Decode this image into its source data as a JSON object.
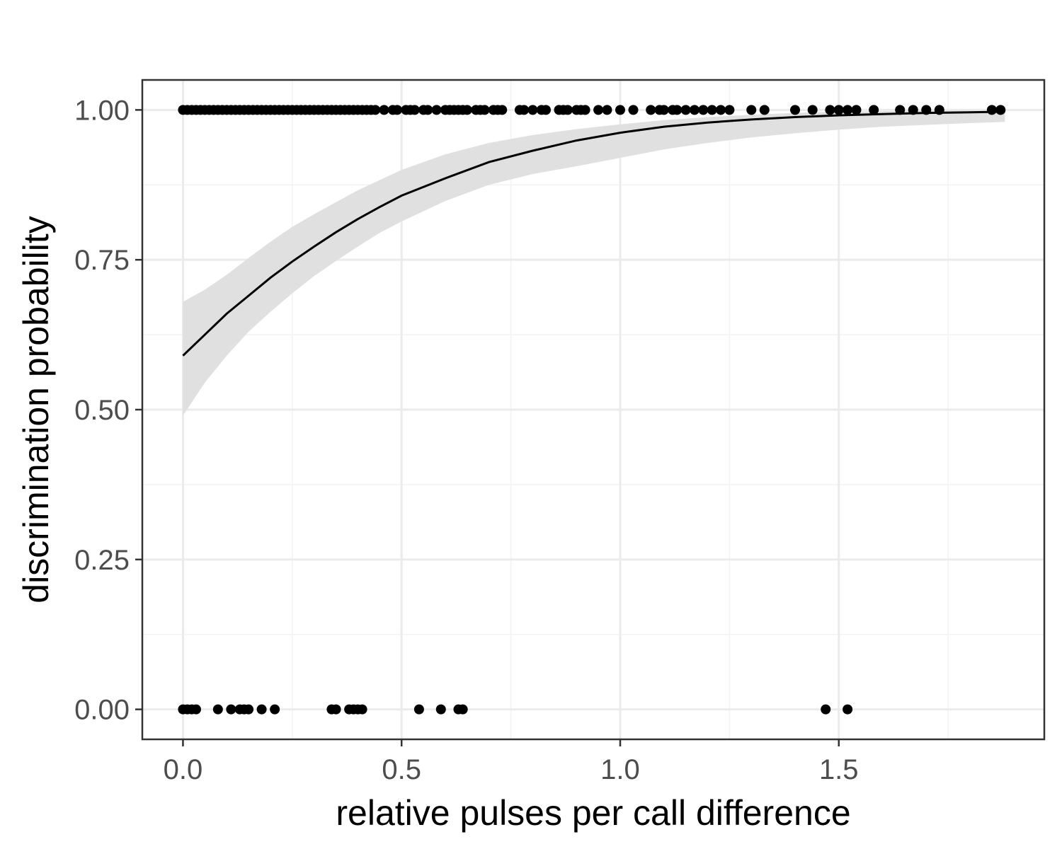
{
  "chart_data": {
    "type": "scatter",
    "title": "",
    "xlabel": "relative pulses per call difference",
    "ylabel": "discrimination probability",
    "xlim": [
      -0.093,
      1.97
    ],
    "ylim": [
      -0.05,
      1.05
    ],
    "x_ticks": [
      0.0,
      0.5,
      1.0,
      1.5
    ],
    "x_tick_labels": [
      "0.0",
      "0.5",
      "1.0",
      "1.5"
    ],
    "y_ticks": [
      0.0,
      0.25,
      0.5,
      0.75,
      1.0
    ],
    "y_tick_labels": [
      "0.00",
      "0.25",
      "0.50",
      "0.75",
      "1.00"
    ],
    "grid": true,
    "legend": "none",
    "colors": {
      "points": "#000000",
      "fit_line": "#000000",
      "ribbon": "#e0e0e0",
      "panel_border": "#333333"
    },
    "series": [
      {
        "type": "scatter",
        "y": 1,
        "x": [
          0.0,
          0.01,
          0.02,
          0.03,
          0.04,
          0.05,
          0.06,
          0.07,
          0.08,
          0.09,
          0.1,
          0.11,
          0.12,
          0.13,
          0.14,
          0.15,
          0.16,
          0.17,
          0.18,
          0.19,
          0.2,
          0.21,
          0.22,
          0.23,
          0.24,
          0.25,
          0.26,
          0.27,
          0.28,
          0.29,
          0.3,
          0.31,
          0.32,
          0.33,
          0.34,
          0.35,
          0.36,
          0.37,
          0.38,
          0.39,
          0.4,
          0.41,
          0.42,
          0.43,
          0.44,
          0.46,
          0.48,
          0.49,
          0.51,
          0.52,
          0.53,
          0.55,
          0.56,
          0.58,
          0.6,
          0.61,
          0.62,
          0.63,
          0.64,
          0.65,
          0.67,
          0.68,
          0.69,
          0.71,
          0.72,
          0.73,
          0.77,
          0.78,
          0.8,
          0.82,
          0.83,
          0.86,
          0.87,
          0.88,
          0.9,
          0.91,
          0.92,
          0.95,
          0.97,
          1.0,
          1.03,
          1.07,
          1.09,
          1.1,
          1.12,
          1.13,
          1.15,
          1.17,
          1.19,
          1.21,
          1.23,
          1.25,
          1.3,
          1.33,
          1.4,
          1.44,
          1.48,
          1.5,
          1.52,
          1.54,
          1.58,
          1.64,
          1.67,
          1.7,
          1.73,
          1.85,
          1.87
        ]
      },
      {
        "type": "scatter",
        "y": 0,
        "x": [
          0.0,
          0.01,
          0.02,
          0.03,
          0.08,
          0.11,
          0.13,
          0.14,
          0.15,
          0.18,
          0.21,
          0.34,
          0.35,
          0.38,
          0.39,
          0.4,
          0.41,
          0.54,
          0.59,
          0.63,
          0.64,
          1.47,
          1.52
        ]
      },
      {
        "type": "line",
        "x": [
          0.0,
          0.05,
          0.1,
          0.15,
          0.2,
          0.25,
          0.3,
          0.35,
          0.4,
          0.45,
          0.5,
          0.6,
          0.7,
          0.8,
          0.9,
          1.0,
          1.1,
          1.2,
          1.3,
          1.4,
          1.5,
          1.6,
          1.7,
          1.8,
          1.88
        ],
        "y": [
          0.59,
          0.625,
          0.66,
          0.69,
          0.72,
          0.747,
          0.772,
          0.796,
          0.818,
          0.838,
          0.857,
          0.886,
          0.913,
          0.932,
          0.949,
          0.962,
          0.972,
          0.979,
          0.984,
          0.988,
          0.991,
          0.993,
          0.995,
          0.996,
          0.997
        ]
      },
      {
        "type": "ribbon",
        "x": [
          0.0,
          0.05,
          0.1,
          0.15,
          0.2,
          0.25,
          0.3,
          0.35,
          0.4,
          0.45,
          0.5,
          0.6,
          0.7,
          0.8,
          0.9,
          1.0,
          1.1,
          1.2,
          1.3,
          1.4,
          1.5,
          1.6,
          1.7,
          1.8,
          1.88
        ],
        "lower": [
          0.49,
          0.545,
          0.59,
          0.63,
          0.663,
          0.694,
          0.723,
          0.748,
          0.772,
          0.795,
          0.814,
          0.848,
          0.875,
          0.893,
          0.906,
          0.92,
          0.934,
          0.945,
          0.954,
          0.961,
          0.967,
          0.972,
          0.975,
          0.978,
          0.98
        ],
        "upper": [
          0.68,
          0.7,
          0.725,
          0.753,
          0.78,
          0.805,
          0.826,
          0.846,
          0.866,
          0.883,
          0.9,
          0.926,
          0.945,
          0.958,
          0.968,
          0.976,
          0.983,
          0.988,
          0.992,
          0.995,
          0.997,
          0.998,
          0.999,
          0.999,
          0.999
        ]
      }
    ]
  }
}
